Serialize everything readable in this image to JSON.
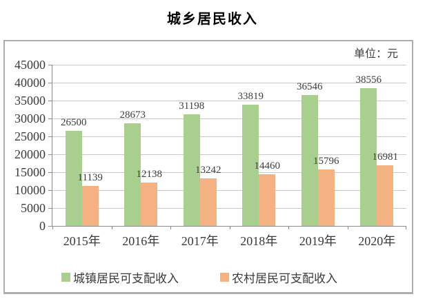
{
  "chart_data": {
    "type": "bar",
    "title": "城乡居民收入",
    "unit": "单位：元",
    "categories": [
      "2015年",
      "2016年",
      "2017年",
      "2018年",
      "2019年",
      "2020年"
    ],
    "series": [
      {
        "name": "城镇居民可支配收入",
        "color": "#a8cf8d",
        "values": [
          26500,
          28673,
          31198,
          33819,
          36546,
          38556
        ]
      },
      {
        "name": "农村居民可支配收入",
        "color": "#f4b182",
        "values": [
          11139,
          12138,
          13242,
          14460,
          15796,
          16981
        ]
      }
    ],
    "ylim": [
      0,
      45000
    ],
    "ytick_step": 5000,
    "yticks": [
      0,
      5000,
      10000,
      15000,
      20000,
      25000,
      30000,
      35000,
      40000,
      45000
    ],
    "grid": true,
    "legend_position": "bottom",
    "data_labels": true
  },
  "colors": {
    "series_urban": "#a8cf8d",
    "series_rural": "#f4b182",
    "gridline": "#c8c8c8",
    "axis": "#8a8a8a",
    "panel_border": "#adadad",
    "text": "#3a3a3a"
  }
}
